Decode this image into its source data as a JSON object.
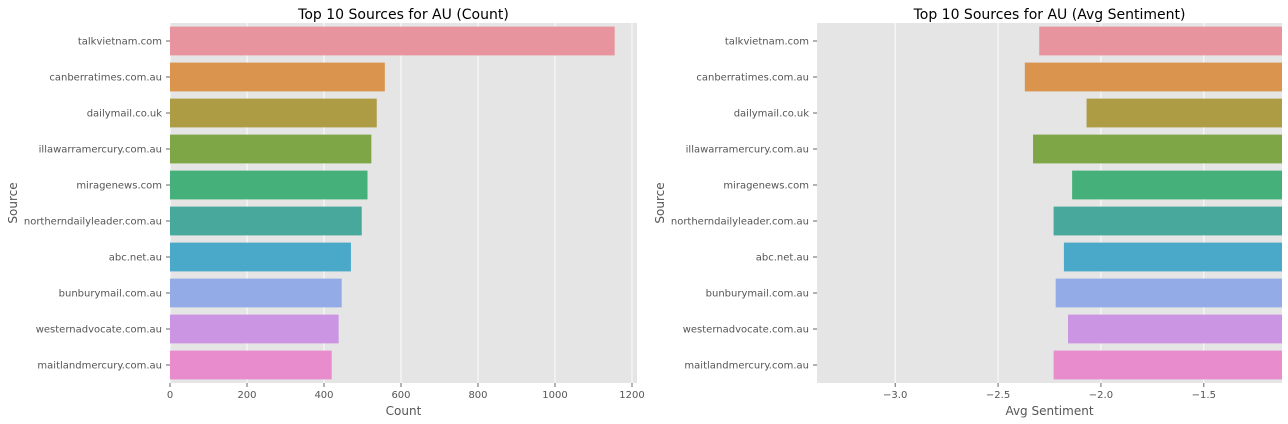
{
  "chart_data": [
    {
      "type": "bar",
      "orientation": "horizontal",
      "title": "Top 10 Sources for AU (Count)",
      "xlabel": "Count",
      "ylabel": "Source",
      "categories": [
        "talkvietnam.com",
        "canberratimes.com.au",
        "dailymail.co.uk",
        "illawarramercury.com.au",
        "miragenews.com",
        "northerndailyleader.com.au",
        "abc.net.au",
        "bunburymail.com.au",
        "westernadvocate.com.au",
        "maitlandmercury.com.au"
      ],
      "values": [
        1155,
        558,
        537,
        523,
        513,
        498,
        470,
        446,
        438,
        420
      ],
      "xlim": [
        0,
        1213
      ],
      "xticks": [
        0,
        200,
        400,
        600,
        800,
        1000,
        1200
      ],
      "xtick_labels": [
        "0",
        "200",
        "400",
        "600",
        "800",
        "1000",
        "1200"
      ],
      "grid": true,
      "style": "ggplot"
    },
    {
      "type": "bar",
      "orientation": "horizontal",
      "title": "Top 10 Sources for AU (Avg Sentiment)",
      "xlabel": "Avg Sentiment",
      "ylabel": "Source",
      "categories": [
        "talkvietnam.com",
        "canberratimes.com.au",
        "dailymail.co.uk",
        "illawarramercury.com.au",
        "miragenews.com",
        "northerndailyleader.com.au",
        "abc.net.au",
        "bunburymail.com.au",
        "westernadvocate.com.au",
        "maitlandmercury.com.au"
      ],
      "values": [
        -2.3,
        -2.37,
        -2.07,
        -2.33,
        -2.14,
        -2.23,
        -2.18,
        -2.22,
        -2.16,
        -2.23
      ],
      "xlim": [
        -3.38,
        -1.12
      ],
      "xticks": [
        -3.0,
        -2.5,
        -2.0,
        -1.5
      ],
      "xtick_labels": [
        "−3.0",
        "−2.5",
        "−2.0",
        "−1.5"
      ],
      "grid": true,
      "style": "ggplot"
    }
  ],
  "colors": [
    "#e8949f",
    "#da944d",
    "#ae9c45",
    "#7ea646",
    "#46b07b",
    "#47a89b",
    "#4aa9c9",
    "#93abe6",
    "#cc95e4",
    "#e98ccd"
  ]
}
